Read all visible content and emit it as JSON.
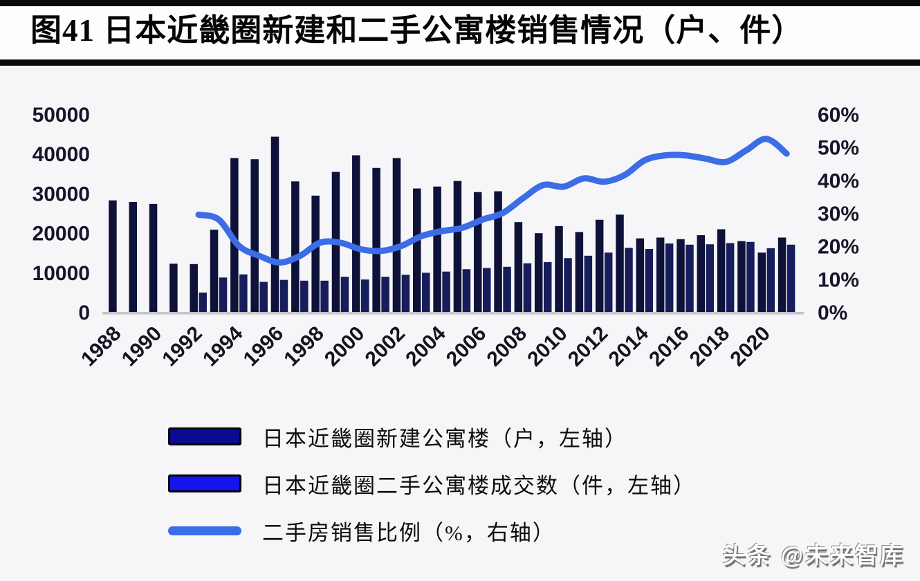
{
  "header": {
    "title": "图41 日本近畿圈新建和二手公寓楼销售情况（户、件）"
  },
  "footer": {
    "watermark": "头条 @未来智库"
  },
  "chart_data": {
    "type": "bar",
    "subtype": "grouped-bars-with-line-combo",
    "years": [
      1988,
      1989,
      1990,
      1991,
      1992,
      1993,
      1994,
      1995,
      1996,
      1997,
      1998,
      1999,
      2000,
      2001,
      2002,
      2003,
      2004,
      2005,
      2006,
      2007,
      2008,
      2009,
      2010,
      2011,
      2012,
      2013,
      2014,
      2015,
      2016,
      2017,
      2018,
      2019,
      2020,
      2021
    ],
    "x_tick_labels": [
      "1988",
      "1990",
      "1992",
      "1994",
      "1996",
      "1998",
      "2000",
      "2002",
      "2004",
      "2006",
      "2008",
      "2010",
      "2012",
      "2014",
      "2016",
      "2018",
      "2020"
    ],
    "series": [
      {
        "name": "日本近畿圈新建公寓楼（户，左轴）",
        "type": "bar",
        "axis": "left",
        "color": "#0e1238",
        "legend_color": "#0b0b8f",
        "values": [
          28200,
          27800,
          27300,
          12200,
          12100,
          20800,
          38900,
          38600,
          44300,
          33000,
          29400,
          35400,
          39600,
          36400,
          38900,
          31200,
          31700,
          33100,
          30300,
          30500,
          22700,
          19900,
          21700,
          20200,
          23300,
          24600,
          18600,
          18800,
          18400,
          19400,
          20900,
          17900,
          15000,
          18800
        ]
      },
      {
        "name": "日本近畿圈二手公寓楼成交数（件，左轴）",
        "type": "bar",
        "axis": "left",
        "color": "#161d5a",
        "legend_color": "#1414ec",
        "values": [
          null,
          null,
          null,
          null,
          4900,
          8700,
          9500,
          7600,
          8100,
          7900,
          7900,
          8900,
          8200,
          8900,
          9400,
          9900,
          10200,
          10800,
          11100,
          11400,
          12300,
          12600,
          13600,
          14200,
          15000,
          16200,
          15900,
          17300,
          17000,
          17100,
          17400,
          17700,
          16100,
          17000
        ]
      },
      {
        "name": "二手房销售比例（%，右轴）",
        "type": "line",
        "axis": "right",
        "color": "#3c6ce6",
        "legend_color": "#3c6ce6",
        "values": [
          null,
          null,
          null,
          null,
          29.5,
          28,
          20,
          17,
          15,
          17,
          21,
          21,
          19,
          18.5,
          20,
          23,
          24.5,
          25.5,
          28,
          30,
          34.5,
          38.5,
          38,
          40.5,
          39.5,
          41.5,
          46,
          47.5,
          47.5,
          46.5,
          45.5,
          49,
          52.5,
          48
        ]
      }
    ],
    "left_axis": {
      "min": 0,
      "max": 50000,
      "step": 10000,
      "ticks": [
        "50000",
        "40000",
        "30000",
        "20000",
        "10000",
        "0"
      ]
    },
    "right_axis": {
      "min": 0,
      "max": 60,
      "step": 10,
      "ticks": [
        "60%",
        "50%",
        "40%",
        "30%",
        "20%",
        "10%",
        "0%"
      ]
    },
    "grid": "off",
    "legend_position": "bottom-left"
  }
}
